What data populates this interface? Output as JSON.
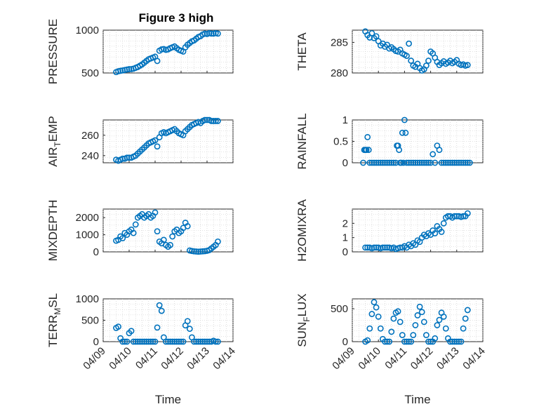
{
  "figure": {
    "title": "Figure 3 high"
  },
  "colors": {
    "marker": "#0072BD",
    "axis": "#262626",
    "grid": "#c8c8c8"
  },
  "chart_data": [
    {
      "type": "scatter",
      "ylabel": "PRESSURE",
      "xlabel": "",
      "ylim": [
        500,
        1000
      ],
      "yticks": [
        "500",
        "1000"
      ],
      "xlim": [
        "04/09",
        "04/14"
      ],
      "xticks": [
        "04/09",
        "04/10",
        "04/11",
        "04/12",
        "04/13",
        "04/14"
      ],
      "show_xticklabels": false,
      "grid": true,
      "x": [
        "04/09 12:00",
        "04/09 14:00",
        "04/09 16:00",
        "04/09 18:00",
        "04/09 20:00",
        "04/09 22:00",
        "04/10 00:00",
        "04/10 02:00",
        "04/10 04:00",
        "04/10 06:00",
        "04/10 08:00",
        "04/10 10:00",
        "04/10 12:00",
        "04/10 14:00",
        "04/10 16:00",
        "04/10 18:00",
        "04/10 20:00",
        "04/10 22:00",
        "04/11 00:00",
        "04/11 02:00",
        "04/11 04:00",
        "04/11 06:00",
        "04/11 08:00",
        "04/11 10:00",
        "04/11 12:00",
        "04/11 14:00",
        "04/11 16:00",
        "04/11 18:00",
        "04/11 20:00",
        "04/11 22:00",
        "04/12 00:00",
        "04/12 02:00",
        "04/12 04:00",
        "04/12 06:00",
        "04/12 08:00",
        "04/12 10:00",
        "04/12 12:00",
        "04/12 14:00",
        "04/12 16:00",
        "04/12 18:00",
        "04/12 20:00",
        "04/12 22:00",
        "04/13 00:00",
        "04/13 02:00",
        "04/13 04:00",
        "04/13 06:00",
        "04/13 08:00",
        "04/13 10:00"
      ],
      "y": [
        510,
        520,
        525,
        530,
        535,
        540,
        545,
        545,
        550,
        560,
        570,
        585,
        600,
        620,
        640,
        660,
        670,
        680,
        690,
        640,
        760,
        775,
        780,
        770,
        775,
        790,
        800,
        810,
        790,
        770,
        760,
        750,
        800,
        830,
        850,
        870,
        880,
        900,
        920,
        930,
        950,
        960,
        955,
        965,
        960,
        960,
        965,
        960
      ]
    },
    {
      "type": "scatter",
      "ylabel": "THETA",
      "xlabel": "",
      "ylim": [
        280,
        287
      ],
      "yticks": [
        "280",
        "285"
      ],
      "xlim": [
        "04/09",
        "04/14"
      ],
      "xticks": [
        "04/09",
        "04/10",
        "04/11",
        "04/12",
        "04/13",
        "04/14"
      ],
      "show_xticklabels": false,
      "grid": true,
      "x": [
        "04/09 12:00",
        "04/09 14:00",
        "04/09 16:00",
        "04/09 18:00",
        "04/09 20:00",
        "04/09 22:00",
        "04/10 00:00",
        "04/10 02:00",
        "04/10 04:00",
        "04/10 06:00",
        "04/10 08:00",
        "04/10 10:00",
        "04/10 12:00",
        "04/10 14:00",
        "04/10 16:00",
        "04/10 18:00",
        "04/10 20:00",
        "04/10 22:00",
        "04/11 00:00",
        "04/11 02:00",
        "04/11 04:00",
        "04/11 06:00",
        "04/11 08:00",
        "04/11 10:00",
        "04/11 12:00",
        "04/11 14:00",
        "04/11 16:00",
        "04/11 18:00",
        "04/11 20:00",
        "04/11 22:00",
        "04/12 00:00",
        "04/12 02:00",
        "04/12 04:00",
        "04/12 06:00",
        "04/12 08:00",
        "04/12 10:00",
        "04/12 12:00",
        "04/12 14:00",
        "04/12 16:00",
        "04/12 18:00",
        "04/12 20:00",
        "04/12 22:00",
        "04/13 00:00",
        "04/13 02:00",
        "04/13 04:00",
        "04/13 06:00",
        "04/13 08:00",
        "04/13 10:00"
      ],
      "y": [
        286.8,
        286.2,
        285.8,
        286.5,
        285.7,
        286.0,
        285.2,
        284.5,
        284.8,
        284.3,
        284.6,
        284.0,
        284.2,
        283.9,
        283.6,
        283.5,
        283.8,
        283.2,
        283.0,
        282.8,
        284.8,
        282.0,
        281.2,
        281.0,
        281.5,
        280.8,
        280.4,
        280.6,
        281.2,
        282.0,
        283.5,
        283.2,
        282.5,
        281.8,
        281.3,
        281.6,
        281.9,
        281.5,
        281.7,
        282.0,
        281.6,
        281.8,
        282.1,
        281.5,
        281.3,
        281.4,
        281.2,
        281.3
      ]
    },
    {
      "type": "scatter",
      "ylabel": "AIR_TEMP",
      "xlabel": "",
      "ylim": [
        233,
        275
      ],
      "yticks": [
        "240",
        "260"
      ],
      "xlim": [
        "04/09",
        "04/14"
      ],
      "xticks": [
        "04/09",
        "04/10",
        "04/11",
        "04/12",
        "04/13",
        "04/14"
      ],
      "show_xticklabels": false,
      "grid": true,
      "x": [
        "04/09 12:00",
        "04/09 14:00",
        "04/09 16:00",
        "04/09 18:00",
        "04/09 20:00",
        "04/09 22:00",
        "04/10 00:00",
        "04/10 02:00",
        "04/10 04:00",
        "04/10 06:00",
        "04/10 08:00",
        "04/10 10:00",
        "04/10 12:00",
        "04/10 14:00",
        "04/10 16:00",
        "04/10 18:00",
        "04/10 20:00",
        "04/10 22:00",
        "04/11 00:00",
        "04/11 02:00",
        "04/11 04:00",
        "04/11 06:00",
        "04/11 08:00",
        "04/11 10:00",
        "04/11 12:00",
        "04/11 14:00",
        "04/11 16:00",
        "04/11 18:00",
        "04/11 20:00",
        "04/11 22:00",
        "04/12 00:00",
        "04/12 02:00",
        "04/12 04:00",
        "04/12 06:00",
        "04/12 08:00",
        "04/12 10:00",
        "04/12 12:00",
        "04/12 14:00",
        "04/12 16:00",
        "04/12 18:00",
        "04/12 20:00",
        "04/12 22:00",
        "04/13 00:00",
        "04/13 02:00",
        "04/13 04:00",
        "04/13 06:00",
        "04/13 08:00",
        "04/13 10:00"
      ],
      "y": [
        236,
        235,
        236,
        237,
        237,
        238,
        238,
        238,
        239,
        240,
        242,
        244,
        246,
        248,
        250,
        252,
        253,
        254,
        255,
        249,
        258,
        262,
        263,
        262,
        263,
        264,
        265,
        266,
        264,
        262,
        261,
        260,
        264,
        266,
        268,
        270,
        271,
        272,
        273,
        272,
        274,
        275,
        275,
        275,
        274,
        274,
        274,
        274
      ]
    },
    {
      "type": "scatter",
      "ylabel": "RAINFALL",
      "xlabel": "",
      "ylim": [
        0,
        1
      ],
      "yticks": [
        "0",
        "0.5",
        "1"
      ],
      "xlim": [
        "04/09",
        "04/14"
      ],
      "xticks": [
        "04/09",
        "04/10",
        "04/11",
        "04/12",
        "04/13",
        "04/14"
      ],
      "show_xticklabels": false,
      "grid": true,
      "x": [
        "04/09 10:00",
        "04/09 11:00",
        "04/09 12:00",
        "04/09 13:00",
        "04/09 14:00",
        "04/09 15:00",
        "04/09 16:00",
        "04/09 18:00",
        "04/09 20:00",
        "04/09 22:00",
        "04/10 00:00",
        "04/10 02:00",
        "04/10 04:00",
        "04/10 06:00",
        "04/10 08:00",
        "04/10 10:00",
        "04/10 12:00",
        "04/10 14:00",
        "04/10 16:00",
        "04/10 17:00",
        "04/10 18:00",
        "04/10 19:00",
        "04/10 20:00",
        "04/10 21:00",
        "04/10 22:00",
        "04/10 23:00",
        "04/11 00:00",
        "04/11 01:00",
        "04/11 02:00",
        "04/11 04:00",
        "04/11 06:00",
        "04/11 08:00",
        "04/11 10:00",
        "04/11 12:00",
        "04/11 14:00",
        "04/11 16:00",
        "04/11 18:00",
        "04/11 20:00",
        "04/11 22:00",
        "04/12 00:00",
        "04/12 02:00",
        "04/12 04:00",
        "04/12 06:00",
        "04/12 08:00",
        "04/12 10:00",
        "04/12 12:00",
        "04/12 14:00",
        "04/12 16:00",
        "04/12 18:00",
        "04/12 20:00",
        "04/12 22:00",
        "04/13 00:00",
        "04/13 02:00",
        "04/13 04:00",
        "04/13 06:00",
        "04/13 08:00",
        "04/13 10:00",
        "04/13 12:00"
      ],
      "y": [
        0,
        0.3,
        0.3,
        0.3,
        0.6,
        0.3,
        0,
        0,
        0,
        0,
        0,
        0,
        0,
        0,
        0,
        0,
        0,
        0,
        0,
        0.4,
        0.4,
        0.3,
        0,
        0,
        0.7,
        0,
        1.0,
        0.7,
        0,
        0,
        0,
        0,
        0,
        0,
        0,
        0,
        0,
        0,
        0,
        0,
        0.2,
        0,
        0.4,
        0.3,
        0,
        0,
        0,
        0,
        0,
        0,
        0,
        0,
        0,
        0,
        0,
        0,
        0,
        0
      ]
    },
    {
      "type": "scatter",
      "ylabel": "MIXDEPTH",
      "xlabel": "",
      "ylim": [
        0,
        2500
      ],
      "yticks": [
        "0",
        "1000",
        "2000"
      ],
      "xlim": [
        "04/09",
        "04/14"
      ],
      "xticks": [
        "04/09",
        "04/10",
        "04/11",
        "04/12",
        "04/13",
        "04/14"
      ],
      "show_xticklabels": false,
      "grid": true,
      "x": [
        "04/09 12:00",
        "04/09 14:00",
        "04/09 16:00",
        "04/09 18:00",
        "04/09 20:00",
        "04/09 22:00",
        "04/10 00:00",
        "04/10 02:00",
        "04/10 04:00",
        "04/10 06:00",
        "04/10 08:00",
        "04/10 10:00",
        "04/10 12:00",
        "04/10 14:00",
        "04/10 16:00",
        "04/10 18:00",
        "04/10 20:00",
        "04/10 22:00",
        "04/11 00:00",
        "04/11 02:00",
        "04/11 04:00",
        "04/11 06:00",
        "04/11 08:00",
        "04/11 10:00",
        "04/11 12:00",
        "04/11 14:00",
        "04/11 16:00",
        "04/11 18:00",
        "04/11 20:00",
        "04/11 22:00",
        "04/12 00:00",
        "04/12 02:00",
        "04/12 04:00",
        "04/12 06:00",
        "04/12 08:00",
        "04/12 10:00",
        "04/12 12:00",
        "04/12 14:00",
        "04/12 16:00",
        "04/12 18:00",
        "04/12 20:00",
        "04/12 22:00",
        "04/13 00:00",
        "04/13 02:00",
        "04/13 04:00",
        "04/13 06:00",
        "04/13 08:00",
        "04/13 10:00"
      ],
      "y": [
        650,
        700,
        900,
        800,
        1100,
        1000,
        1200,
        1300,
        1100,
        1600,
        2000,
        2100,
        2200,
        2000,
        2100,
        2200,
        2000,
        2100,
        2300,
        1200,
        600,
        500,
        700,
        400,
        300,
        400,
        900,
        1200,
        1300,
        1100,
        1200,
        1400,
        1700,
        1500,
        80,
        50,
        30,
        20,
        10,
        20,
        30,
        40,
        60,
        100,
        200,
        300,
        400,
        600
      ]
    },
    {
      "type": "scatter",
      "ylabel": "H2OMIXRA",
      "xlabel": "",
      "ylim": [
        0,
        3
      ],
      "yticks": [
        "0",
        "1",
        "2"
      ],
      "xlim": [
        "04/09",
        "04/14"
      ],
      "xticks": [
        "04/09",
        "04/10",
        "04/11",
        "04/12",
        "04/13",
        "04/14"
      ],
      "show_xticklabels": false,
      "grid": true,
      "x": [
        "04/09 12:00",
        "04/09 14:00",
        "04/09 16:00",
        "04/09 18:00",
        "04/09 20:00",
        "04/09 22:00",
        "04/10 00:00",
        "04/10 02:00",
        "04/10 04:00",
        "04/10 06:00",
        "04/10 08:00",
        "04/10 10:00",
        "04/10 12:00",
        "04/10 14:00",
        "04/10 16:00",
        "04/10 18:00",
        "04/10 20:00",
        "04/10 22:00",
        "04/11 00:00",
        "04/11 02:00",
        "04/11 04:00",
        "04/11 06:00",
        "04/11 08:00",
        "04/11 10:00",
        "04/11 12:00",
        "04/11 14:00",
        "04/11 16:00",
        "04/11 18:00",
        "04/11 20:00",
        "04/11 22:00",
        "04/12 00:00",
        "04/12 02:00",
        "04/12 04:00",
        "04/12 06:00",
        "04/12 08:00",
        "04/12 10:00",
        "04/12 12:00",
        "04/12 14:00",
        "04/12 16:00",
        "04/12 18:00",
        "04/12 20:00",
        "04/12 22:00",
        "04/13 00:00",
        "04/13 02:00",
        "04/13 04:00",
        "04/13 06:00",
        "04/13 08:00",
        "04/13 10:00"
      ],
      "y": [
        0.3,
        0.3,
        0.3,
        0.25,
        0.3,
        0.3,
        0.3,
        0.25,
        0.3,
        0.3,
        0.3,
        0.3,
        0.25,
        0.3,
        0.2,
        0.25,
        0.3,
        0.3,
        0.4,
        0.3,
        0.5,
        0.4,
        0.6,
        0.5,
        0.8,
        0.7,
        1.0,
        1.2,
        1.1,
        1.3,
        1.2,
        1.5,
        1.3,
        1.8,
        1.6,
        1.4,
        2.0,
        2.4,
        2.5,
        2.5,
        2.4,
        2.5,
        2.5,
        2.5,
        2.45,
        2.5,
        2.5,
        2.7
      ]
    },
    {
      "type": "scatter",
      "ylabel": "TERR_MSL",
      "xlabel": "Time",
      "ylim": [
        0,
        1000
      ],
      "yticks": [
        "0",
        "500",
        "1000"
      ],
      "xlim": [
        "04/09",
        "04/14"
      ],
      "xticks": [
        "04/09",
        "04/10",
        "04/11",
        "04/12",
        "04/13",
        "04/14"
      ],
      "show_xticklabels": true,
      "grid": true,
      "x": [
        "04/09 12:00",
        "04/09 14:00",
        "04/09 16:00",
        "04/09 18:00",
        "04/09 20:00",
        "04/09 22:00",
        "04/10 00:00",
        "04/10 02:00",
        "04/10 04:00",
        "04/10 06:00",
        "04/10 08:00",
        "04/10 10:00",
        "04/10 12:00",
        "04/10 14:00",
        "04/10 16:00",
        "04/10 18:00",
        "04/10 20:00",
        "04/10 22:00",
        "04/11 00:00",
        "04/11 02:00",
        "04/11 04:00",
        "04/11 06:00",
        "04/11 08:00",
        "04/11 10:00",
        "04/11 12:00",
        "04/11 14:00",
        "04/11 16:00",
        "04/11 18:00",
        "04/11 20:00",
        "04/11 22:00",
        "04/12 00:00",
        "04/12 02:00",
        "04/12 04:00",
        "04/12 06:00",
        "04/12 08:00",
        "04/12 10:00",
        "04/12 12:00",
        "04/12 14:00",
        "04/12 16:00",
        "04/12 18:00",
        "04/12 20:00",
        "04/12 22:00",
        "04/13 00:00",
        "04/13 02:00",
        "04/13 04:00",
        "04/13 06:00",
        "04/13 08:00",
        "04/13 10:00"
      ],
      "y": [
        320,
        350,
        80,
        0,
        0,
        0,
        200,
        250,
        0,
        0,
        0,
        0,
        0,
        0,
        0,
        0,
        0,
        0,
        0,
        330,
        850,
        720,
        100,
        0,
        0,
        0,
        0,
        0,
        0,
        0,
        0,
        0,
        380,
        480,
        300,
        100,
        0,
        0,
        0,
        0,
        0,
        0,
        0,
        0,
        0,
        20,
        0,
        0
      ]
    },
    {
      "type": "scatter",
      "ylabel": "SUN_FLUX",
      "xlabel": "Time",
      "ylim": [
        0,
        650
      ],
      "yticks": [
        "0",
        "500"
      ],
      "xlim": [
        "04/09",
        "04/14"
      ],
      "xticks": [
        "04/09",
        "04/10",
        "04/11",
        "04/12",
        "04/13",
        "04/14"
      ],
      "show_xticklabels": true,
      "grid": true,
      "x": [
        "04/09 12:00",
        "04/09 14:00",
        "04/09 16:00",
        "04/09 18:00",
        "04/09 20:00",
        "04/09 22:00",
        "04/10 00:00",
        "04/10 02:00",
        "04/10 04:00",
        "04/10 06:00",
        "04/10 08:00",
        "04/10 10:00",
        "04/10 12:00",
        "04/10 14:00",
        "04/10 16:00",
        "04/10 18:00",
        "04/10 20:00",
        "04/10 22:00",
        "04/11 00:00",
        "04/11 02:00",
        "04/11 04:00",
        "04/11 06:00",
        "04/11 08:00",
        "04/11 10:00",
        "04/11 12:00",
        "04/11 14:00",
        "04/11 16:00",
        "04/11 18:00",
        "04/11 20:00",
        "04/11 22:00",
        "04/12 00:00",
        "04/12 02:00",
        "04/12 04:00",
        "04/12 06:00",
        "04/12 08:00",
        "04/12 10:00",
        "04/12 12:00",
        "04/12 14:00",
        "04/12 16:00",
        "04/12 18:00",
        "04/12 20:00",
        "04/12 22:00",
        "04/13 00:00",
        "04/13 02:00",
        "04/13 04:00",
        "04/13 06:00",
        "04/13 08:00",
        "04/13 10:00"
      ],
      "y": [
        0,
        20,
        200,
        420,
        600,
        520,
        380,
        200,
        40,
        0,
        0,
        0,
        150,
        350,
        440,
        460,
        300,
        100,
        0,
        0,
        0,
        0,
        100,
        250,
        400,
        530,
        450,
        300,
        100,
        0,
        0,
        0,
        50,
        250,
        330,
        440,
        380,
        200,
        50,
        0,
        0,
        0,
        0,
        0,
        0,
        200,
        350,
        480
      ]
    }
  ]
}
